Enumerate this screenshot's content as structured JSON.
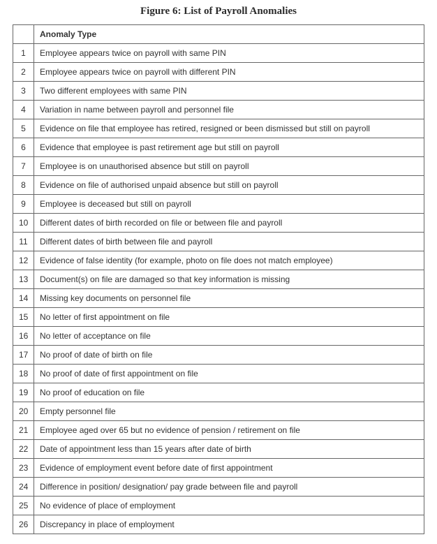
{
  "figure": {
    "title": "Figure 6: List of Payroll Anomalies",
    "header": {
      "col1": "",
      "col2": "Anomaly Type"
    },
    "rows": [
      {
        "n": "1",
        "text": "Employee appears twice on payroll with same PIN"
      },
      {
        "n": "2",
        "text": "Employee appears twice on payroll with different PIN"
      },
      {
        "n": "3",
        "text": "Two different employees with same PIN"
      },
      {
        "n": "4",
        "text": "Variation in name between payroll and personnel file"
      },
      {
        "n": "5",
        "text": "Evidence on file that employee has retired, resigned or been dismissed but still on payroll"
      },
      {
        "n": "6",
        "text": "Evidence that employee is past retirement age but still on payroll"
      },
      {
        "n": "7",
        "text": "Employee is on unauthorised absence but still on payroll"
      },
      {
        "n": "8",
        "text": "Evidence on file of authorised unpaid absence but still on payroll"
      },
      {
        "n": "9",
        "text": "Employee is deceased but still on payroll"
      },
      {
        "n": "10",
        "text": "Different dates of birth recorded on file or between file and payroll"
      },
      {
        "n": "11",
        "text": "Different dates of birth between file and payroll"
      },
      {
        "n": "12",
        "text": "Evidence of false identity (for example, photo on file does not match employee)"
      },
      {
        "n": "13",
        "text": "Document(s) on file are damaged so that key information is missing"
      },
      {
        "n": "14",
        "text": "Missing key documents on personnel file"
      },
      {
        "n": "15",
        "text": "No letter of first appointment on file"
      },
      {
        "n": "16",
        "text": "No letter of acceptance on file"
      },
      {
        "n": "17",
        "text": "No proof of date of birth on file"
      },
      {
        "n": "18",
        "text": "No proof of date of first appointment on file"
      },
      {
        "n": "19",
        "text": "No proof of education on file"
      },
      {
        "n": "20",
        "text": "Empty personnel file"
      },
      {
        "n": "21",
        "text": "Employee aged over 65 but no evidence of pension / retirement on file"
      },
      {
        "n": "22",
        "text": "Date of appointment less than 15 years after date of birth"
      },
      {
        "n": "23",
        "text": "Evidence of employment event before date of first appointment"
      },
      {
        "n": "24",
        "text": "Difference in position/ designation/ pay grade between file and payroll"
      },
      {
        "n": "25",
        "text": "No evidence of place of employment"
      },
      {
        "n": "26",
        "text": "Discrepancy in place of employment"
      }
    ]
  }
}
